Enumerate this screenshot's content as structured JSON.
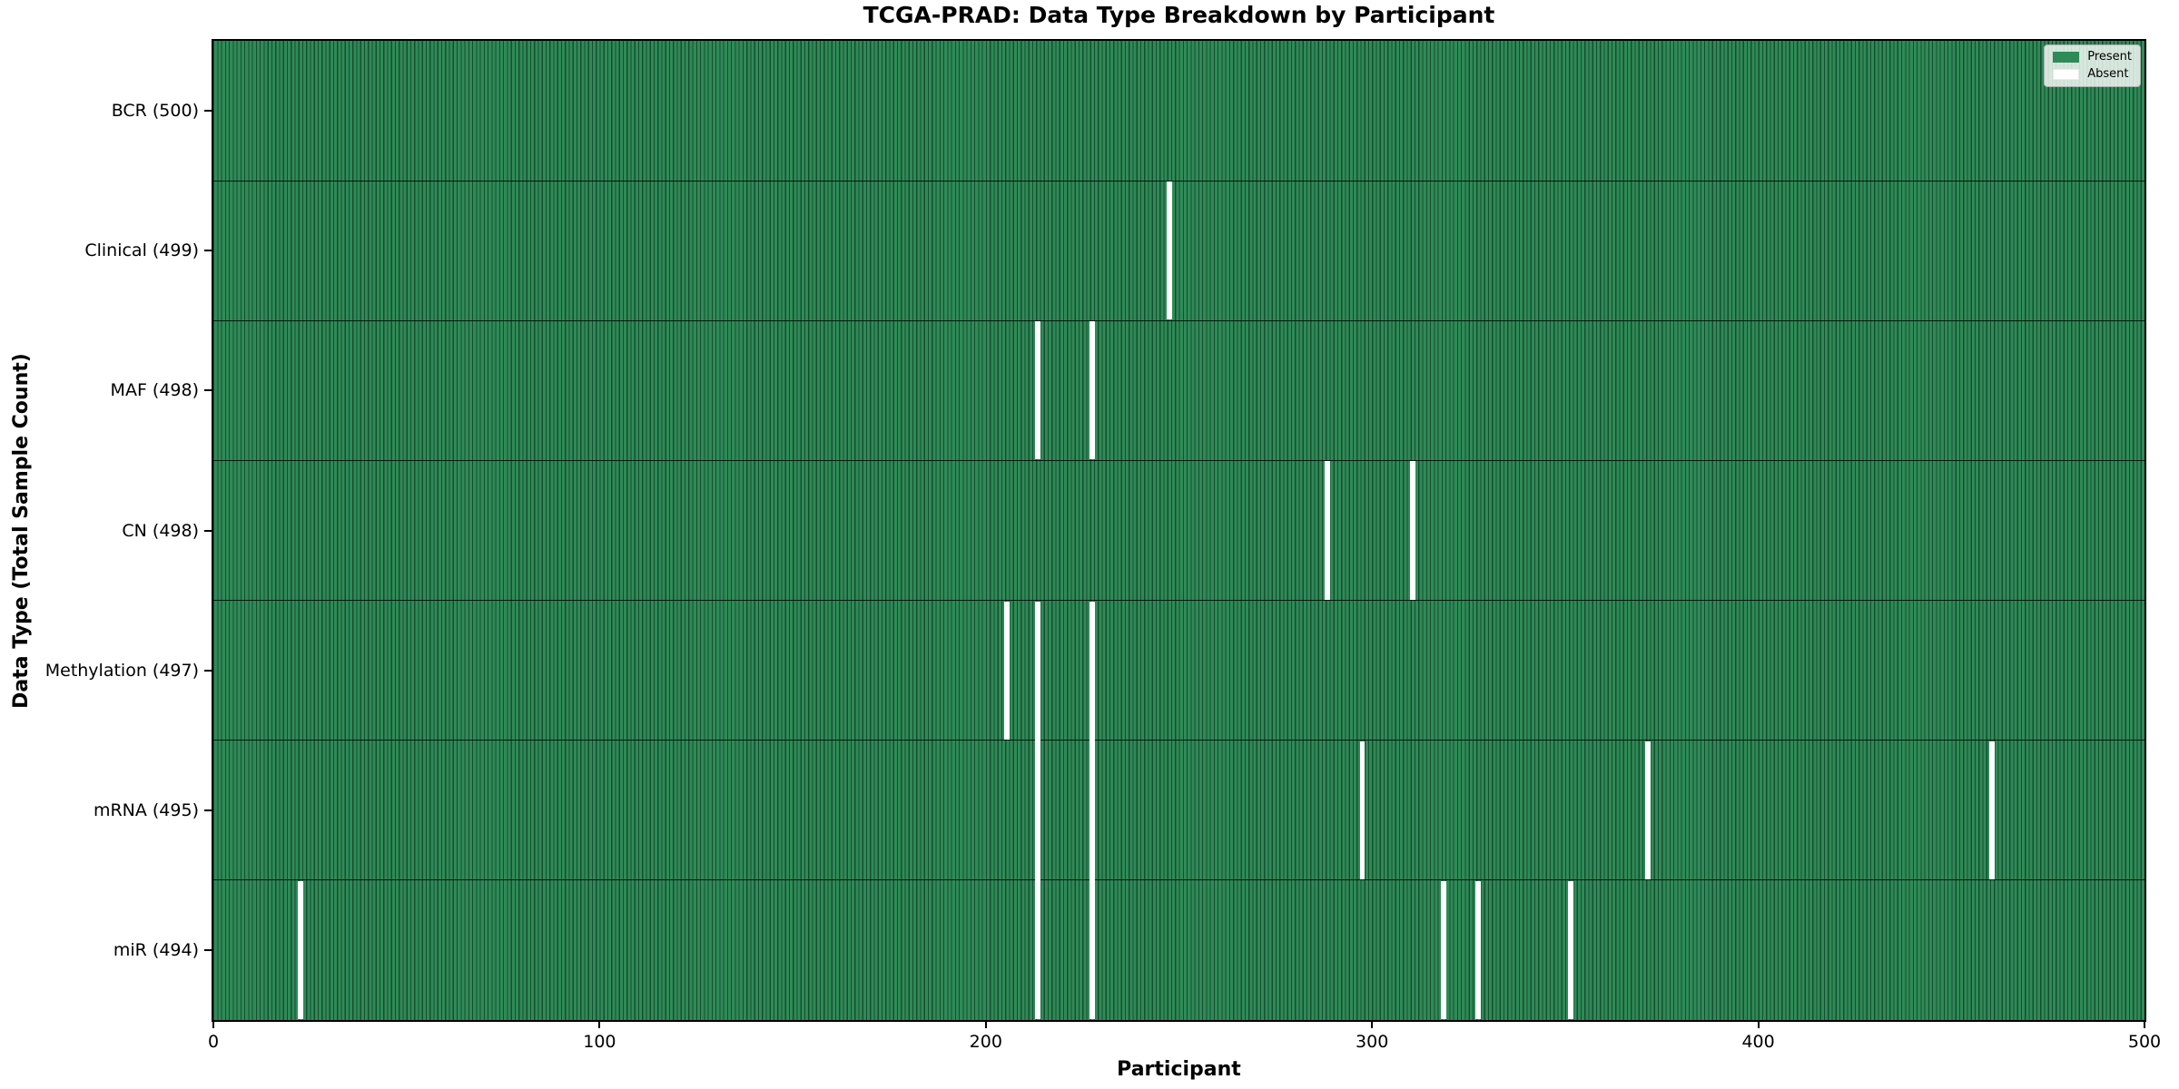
{
  "chart_data": {
    "type": "heatmap",
    "title": "TCGA-PRAD: Data Type Breakdown by Participant",
    "xlabel": "Participant",
    "ylabel": "Data Type (Total Sample Count)",
    "x_axis": {
      "range": [
        0,
        500
      ],
      "ticks": [
        "0",
        "100",
        "200",
        "300",
        "400",
        "500"
      ]
    },
    "n_participants": 500,
    "legend_position": "upper right",
    "legend": [
      {
        "label": "Present",
        "color": "#2e8b57"
      },
      {
        "label": "Absent",
        "color": "#ffffff"
      }
    ],
    "colors": {
      "present": "#2e8b57",
      "absent": "#ffffff",
      "cell_edge": "rgba(0,0,0,0.45)",
      "row_edge": "rgba(0,0,0,0.8)",
      "spine": "#000000"
    },
    "rows": [
      {
        "label": "BCR (500)",
        "data_type": "BCR",
        "present_count": 500,
        "absent_count": 0,
        "absent_participants": []
      },
      {
        "label": "Clinical (499)",
        "data_type": "Clinical",
        "present_count": 499,
        "absent_count": 1,
        "absent_participants": [
          247
        ]
      },
      {
        "label": "MAF (498)",
        "data_type": "MAF",
        "present_count": 498,
        "absent_count": 2,
        "absent_participants": [
          213,
          227
        ]
      },
      {
        "label": "CN (498)",
        "data_type": "CN",
        "present_count": 498,
        "absent_count": 2,
        "absent_participants": [
          288,
          310
        ]
      },
      {
        "label": "Methylation (497)",
        "data_type": "Methylation",
        "present_count": 497,
        "absent_count": 3,
        "absent_participants": [
          205,
          213,
          227
        ]
      },
      {
        "label": "mRNA (495)",
        "data_type": "mRNA",
        "present_count": 495,
        "absent_count": 5,
        "absent_participants": [
          213,
          227,
          297,
          371,
          460
        ]
      },
      {
        "label": "miR (494)",
        "data_type": "miR",
        "present_count": 494,
        "absent_count": 6,
        "absent_participants": [
          22,
          213,
          227,
          318,
          327,
          351
        ]
      }
    ]
  }
}
